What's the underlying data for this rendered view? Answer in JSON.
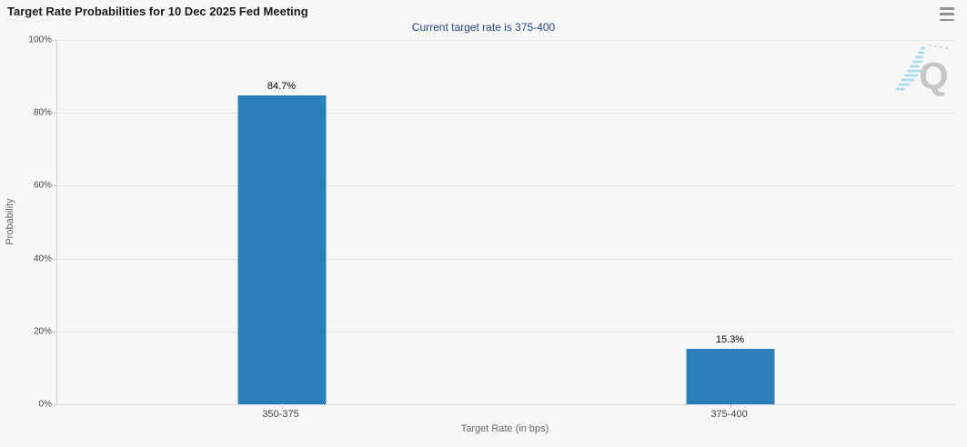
{
  "header": {
    "menu_icon": "hamburger-icon"
  },
  "watermark": {
    "icon": "quikstrike-logo",
    "letter": "Q"
  },
  "chart_data": {
    "type": "bar",
    "title": "Target Rate Probabilities for 10 Dec 2025 Fed Meeting",
    "subtitle": "Current target rate is 375-400",
    "categories": [
      "350-375",
      "375-400"
    ],
    "values": [
      84.7,
      15.3
    ],
    "value_labels": [
      "84.7%",
      "15.3%"
    ],
    "xlabel": "Target Rate (in bps)",
    "ylabel": "Probability",
    "ylim": [
      0,
      100
    ],
    "yticks": [
      0,
      20,
      40,
      60,
      80,
      100
    ],
    "ytick_labels": [
      "0%",
      "20%",
      "40%",
      "60%",
      "80%",
      "100%"
    ],
    "grid": "horizontal-dotted",
    "legend_position": "none",
    "bar_color": "#2980b9"
  },
  "colors": {
    "background": "#f7f7f7",
    "bar": "#2980b9",
    "title_text": "#1a1a1a",
    "subtitle_text": "#26437c",
    "axis_line": "#cfcfcf",
    "gridline": "#d6d6d6",
    "axis_label": "#444444",
    "axis_title": "#666666"
  }
}
